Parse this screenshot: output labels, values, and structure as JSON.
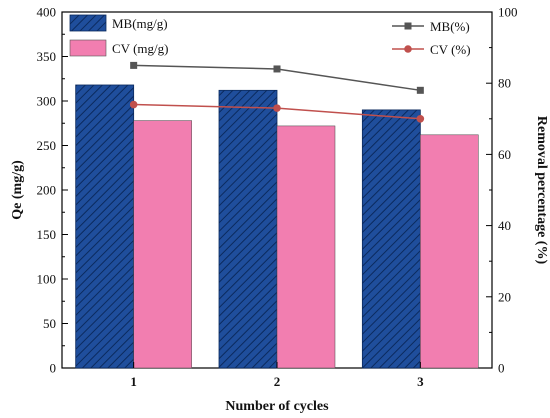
{
  "chart_data": {
    "type": "bar",
    "categories": [
      "1",
      "2",
      "3"
    ],
    "xlabel": "Number of cycles",
    "ylabel": "Qe (mg/g)",
    "ylabel_right": "Removal percentage (%)",
    "ylim": [
      0,
      400
    ],
    "ylim_right": [
      0,
      100
    ],
    "yticks": [
      "0",
      "50",
      "100",
      "150",
      "200",
      "250",
      "300",
      "350",
      "400"
    ],
    "yticks_right": [
      "0",
      "20",
      "40",
      "60",
      "80",
      "100"
    ],
    "grid": false,
    "bar_series": [
      {
        "name": "MB(mg/g)",
        "values": [
          318,
          312,
          290
        ],
        "color": "#1f4e9c",
        "hatch": true
      },
      {
        "name": "CV (mg/g)",
        "values": [
          278,
          272,
          262
        ],
        "color": "#f27eb0",
        "hatch": false
      }
    ],
    "line_series": [
      {
        "name": "MB(%)",
        "values": [
          85,
          84,
          78
        ],
        "color": "#555555",
        "marker": "square",
        "axis": "right"
      },
      {
        "name": "CV (%)",
        "values": [
          74,
          73,
          70
        ],
        "color": "#c0504d",
        "marker": "circle",
        "axis": "right"
      }
    ],
    "legend_left": "top-left",
    "legend_right": "top-right"
  }
}
